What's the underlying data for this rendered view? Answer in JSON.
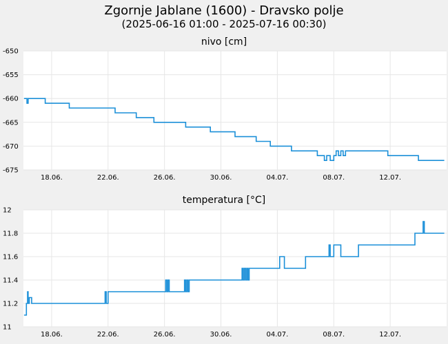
{
  "header": {
    "title": "Zgornje Jablane (1600) - Dravsko polje",
    "subtitle": "(2025-06-16 01:00 - 2025-07-16 00:30)"
  },
  "colors": {
    "line": "#1a8fd8",
    "plot_bg": "#ffffff",
    "page_bg": "#f0f0f0",
    "grid": "#e6e6e6"
  },
  "chart_data": [
    {
      "type": "line",
      "title": "nivo [cm]",
      "ylim": [
        -675,
        -650
      ],
      "yticks": [
        "-650",
        "-655",
        "-660",
        "-665",
        "-670",
        "-675"
      ],
      "ytick_values": [
        -650,
        -655,
        -660,
        -665,
        -670,
        -675
      ],
      "xlim": [
        "2025-06-16",
        "2025-07-16"
      ],
      "xtick_labels": [
        "18.06.",
        "22.06.",
        "26.06.",
        "30.06.",
        "04.07.",
        "08.07.",
        "12.07."
      ],
      "xtick_dates": [
        "2025-06-18",
        "2025-06-22",
        "2025-06-26",
        "2025-06-30",
        "2025-07-04",
        "2025-07-08",
        "2025-07-12"
      ],
      "grid": true,
      "series": [
        {
          "x": [
            "2025-06-16 01:00",
            "2025-06-16 04:00",
            "2025-06-16 06:00",
            "2025-06-16 08:00",
            "2025-06-16 10:00",
            "2025-06-16 14:00",
            "2025-06-17 00:00",
            "2025-06-17 12:00",
            "2025-06-17 13:00",
            "2025-06-18 12:00",
            "2025-06-19 00:00",
            "2025-06-19 04:00",
            "2025-06-19 06:00",
            "2025-06-19 12:00",
            "2025-06-20 12:00",
            "2025-06-21 00:00",
            "2025-06-22 12:00",
            "2025-06-22 18:00",
            "2025-06-23 12:00",
            "2025-06-24 00:00",
            "2025-06-25 00:00",
            "2025-06-25 06:00",
            "2025-06-26 12:00",
            "2025-06-27 12:00",
            "2025-06-28 00:00",
            "2025-06-29 06:00",
            "2025-06-30 12:00",
            "2025-07-01 00:00",
            "2025-07-01 18:00",
            "2025-07-02 12:00",
            "2025-07-03 00:00",
            "2025-07-03 12:00",
            "2025-07-04 18:00",
            "2025-07-05 00:00",
            "2025-07-06 00:00",
            "2025-07-06 20:00",
            "2025-07-07 00:00",
            "2025-07-07 04:00",
            "2025-07-07 08:00",
            "2025-07-07 12:00",
            "2025-07-07 18:00",
            "2025-07-08 00:00",
            "2025-07-08 04:00",
            "2025-07-08 08:00",
            "2025-07-08 12:00",
            "2025-07-08 16:00",
            "2025-07-08 20:00",
            "2025-07-09 00:00",
            "2025-07-09 12:00",
            "2025-07-10 00:00",
            "2025-07-10 12:00",
            "2025-07-11 00:00",
            "2025-07-11 12:00",
            "2025-07-11 20:00",
            "2025-07-12 12:00",
            "2025-07-13 00:00",
            "2025-07-13 12:00",
            "2025-07-14 00:00",
            "2025-07-14 12:00",
            "2025-07-15 00:00",
            "2025-07-15 12:00",
            "2025-07-15 20:00"
          ],
          "y": [
            -660,
            -660,
            -661,
            -660,
            -660,
            -660,
            -660,
            -660,
            -661,
            -661,
            -661,
            -661,
            -662,
            -662,
            -662,
            -662,
            -663,
            -663,
            -663,
            -664,
            -664,
            -665,
            -665,
            -666,
            -666,
            -667,
            -667,
            -668,
            -668,
            -669,
            -669,
            -670,
            -670,
            -671,
            -671,
            -672,
            -672,
            -672,
            -673,
            -672,
            -673,
            -672,
            -671,
            -672,
            -671,
            -672,
            -671,
            -671,
            -671,
            -671,
            -671,
            -671,
            -671,
            -672,
            -672,
            -672,
            -672,
            -673,
            -673,
            -673,
            -673,
            -673
          ]
        }
      ]
    },
    {
      "type": "line",
      "title": "temperatura [°C]",
      "ylim": [
        11,
        12
      ],
      "yticks": [
        "12",
        "11.8",
        "11.6",
        "11.4",
        "11.2",
        "11"
      ],
      "ytick_values": [
        12,
        11.8,
        11.6,
        11.4,
        11.2,
        11
      ],
      "xlim": [
        "2025-06-16",
        "2025-07-16"
      ],
      "xtick_labels": [
        "18.06.",
        "22.06.",
        "26.06.",
        "30.06.",
        "04.07.",
        "08.07.",
        "12.07."
      ],
      "xtick_dates": [
        "2025-06-18",
        "2025-06-22",
        "2025-06-26",
        "2025-06-30",
        "2025-07-04",
        "2025-07-08",
        "2025-07-12"
      ],
      "grid": true,
      "series": [
        {
          "x": [
            "2025-06-16 01:00",
            "2025-06-16 04:00",
            "2025-06-16 05:00",
            "2025-06-16 07:00",
            "2025-06-16 08:00",
            "2025-06-16 10:00",
            "2025-06-16 14:00",
            "2025-06-21 18:00",
            "2025-06-21 19:00",
            "2025-06-21 21:00",
            "2025-06-22 00:00",
            "2025-06-26 00:00",
            "2025-06-26 02:00",
            "2025-06-26 04:00",
            "2025-06-26 06:00",
            "2025-06-26 08:00",
            "2025-06-26 10:00",
            "2025-06-26 14:00",
            "2025-06-27 10:00",
            "2025-06-27 12:00",
            "2025-06-27 14:00",
            "2025-06-27 16:00",
            "2025-06-27 18:00",
            "2025-07-01 10:00",
            "2025-07-01 12:00",
            "2025-07-01 14:00",
            "2025-07-01 16:00",
            "2025-07-01 18:00",
            "2025-07-01 20:00",
            "2025-07-01 22:00",
            "2025-07-02 00:00",
            "2025-07-04 00:00",
            "2025-07-04 04:00",
            "2025-07-04 08:00",
            "2025-07-04 12:00",
            "2025-07-05 18:00",
            "2025-07-06 00:00",
            "2025-07-07 12:00",
            "2025-07-07 16:00",
            "2025-07-07 18:00",
            "2025-07-08 00:00",
            "2025-07-08 12:00",
            "2025-07-08 18:00",
            "2025-07-09 00:00",
            "2025-07-09 12:00",
            "2025-07-09 18:00",
            "2025-07-10 00:00",
            "2025-07-13 12:00",
            "2025-07-13 18:00",
            "2025-07-14 06:00",
            "2025-07-14 08:00",
            "2025-07-14 10:00",
            "2025-07-14 12:00",
            "2025-07-15 20:00"
          ],
          "y": [
            11.1,
            11.1,
            11.2,
            11.3,
            11.2,
            11.25,
            11.2,
            11.2,
            11.3,
            11.2,
            11.3,
            11.3,
            11.4,
            11.3,
            11.4,
            11.3,
            11.3,
            11.3,
            11.4,
            11.3,
            11.4,
            11.3,
            11.4,
            11.4,
            11.5,
            11.4,
            11.5,
            11.4,
            11.5,
            11.4,
            11.5,
            11.5,
            11.6,
            11.6,
            11.5,
            11.5,
            11.6,
            11.6,
            11.7,
            11.6,
            11.7,
            11.6,
            11.6,
            11.6,
            11.6,
            11.7,
            11.7,
            11.7,
            11.8,
            11.8,
            11.9,
            11.8,
            11.8,
            11.8
          ]
        }
      ]
    }
  ]
}
